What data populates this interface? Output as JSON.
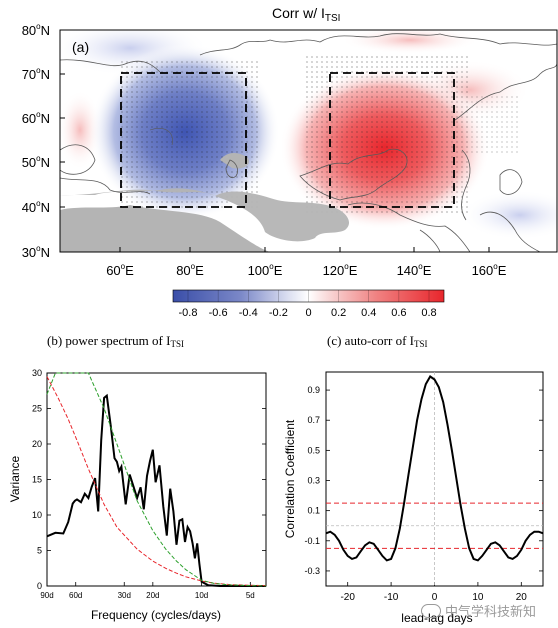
{
  "panel_a": {
    "title_main": "Corr w/ I",
    "title_sub": "TSI",
    "label": "(a)",
    "lat_ticks": [
      "80",
      "70",
      "60",
      "50",
      "40",
      "30"
    ],
    "lat_suffix": "N",
    "lon_ticks": [
      "60",
      "80",
      "100",
      "120",
      "140",
      "160"
    ],
    "lon_suffix": "E",
    "degree_symbol": "o",
    "colorbar_ticks": [
      "-0.8",
      "-0.6",
      "-0.4",
      "-0.2",
      "0",
      "0.2",
      "0.4",
      "0.6",
      "0.8"
    ],
    "colors": {
      "negative": "#3b4fae",
      "positive": "#e8262c",
      "land_missing": "#b4b4b4",
      "coast": "#5a5a5a"
    }
  },
  "panel_b": {
    "title": "(b) power spectrum of I",
    "title_sub": "TSI",
    "xlabel": "Frequency (cycles/days)",
    "ylabel": "Variance"
  },
  "panel_c": {
    "title": "(c) auto-corr of I",
    "title_sub": "TSI",
    "xlabel": "lead-lag days",
    "ylabel": "Correlation Coefficient"
  },
  "chart_data": [
    {
      "type": "line",
      "panel": "b",
      "x_tick_labels": [
        "90d",
        "60d",
        "30d",
        "20d",
        "10d",
        "5d"
      ],
      "x_ticks_cpd": [
        0.0111,
        0.0167,
        0.0333,
        0.05,
        0.1,
        0.2
      ],
      "y_ticks": [
        0,
        5,
        10,
        15,
        20,
        25,
        30
      ],
      "ylim": [
        0,
        30
      ],
      "xlim": [
        0.0111,
        0.25
      ],
      "series": [
        {
          "color": "#000000",
          "x": [
            0.0111,
            0.0125,
            0.014,
            0.015,
            0.016,
            0.0165,
            0.017,
            0.018,
            0.019,
            0.02,
            0.021,
            0.022,
            0.023,
            0.024,
            0.025,
            0.026,
            0.0275,
            0.029,
            0.03,
            0.031,
            0.032,
            0.034,
            0.036,
            0.038,
            0.04,
            0.042,
            0.044,
            0.046,
            0.048,
            0.05,
            0.052,
            0.055,
            0.058,
            0.061,
            0.064,
            0.067,
            0.07,
            0.073,
            0.076,
            0.079,
            0.082,
            0.085,
            0.088,
            0.091,
            0.094,
            0.097,
            0.1,
            0.11,
            0.13,
            0.15,
            0.17,
            0.2,
            0.23,
            0.25
          ],
          "y": [
            7,
            7.5,
            7.4,
            9,
            11.6,
            12,
            12.2,
            11.8,
            13,
            12.4,
            14,
            15.2,
            10.5,
            20.5,
            26.5,
            26.8,
            22.5,
            18,
            17.5,
            16.2,
            16.8,
            11.5,
            15.7,
            14,
            12.4,
            13.9,
            10.8,
            15.5,
            17.6,
            19.2,
            14.6,
            17,
            11.2,
            7.1,
            13.7,
            10.5,
            5.8,
            9.2,
            9.4,
            6.2,
            8.3,
            7.7,
            6,
            3.9,
            6,
            3.1,
            0.6,
            0.1,
            0,
            0,
            0,
            0,
            0,
            0
          ]
        },
        {
          "color": "#e8262c",
          "dash": true,
          "x": [
            0.0111,
            0.013,
            0.015,
            0.017,
            0.02,
            0.025,
            0.03,
            0.04,
            0.05,
            0.06,
            0.07,
            0.08,
            0.1,
            0.12,
            0.15,
            0.2,
            0.25
          ],
          "y": [
            29.5,
            26.5,
            23.5,
            20.5,
            16.5,
            11.5,
            8.3,
            5.2,
            3.5,
            2.5,
            1.8,
            1.3,
            0.7,
            0.4,
            0.2,
            0.1,
            0.05
          ]
        },
        {
          "color": "#2ca02c",
          "dash": true,
          "x": [
            0.0111,
            0.0125,
            0.0145,
            0.017,
            0.02,
            0.025,
            0.03,
            0.04,
            0.05,
            0.06,
            0.07,
            0.08,
            0.1,
            0.12,
            0.15,
            0.2,
            0.25
          ],
          "y": [
            27,
            30,
            30,
            30,
            30,
            25,
            20,
            12,
            7.8,
            5.2,
            3.5,
            2.3,
            0.8,
            0.35,
            0.15,
            0.05,
            0.02
          ]
        }
      ]
    },
    {
      "type": "line",
      "panel": "c",
      "x_ticks": [
        -20,
        -10,
        0,
        10,
        20
      ],
      "y_ticks": [
        -0.3,
        -0.1,
        0.1,
        0.3,
        0.5,
        0.7,
        0.9
      ],
      "xlim": [
        -25,
        25
      ],
      "ylim": [
        -0.4,
        1.02
      ],
      "zero_line": 0,
      "significance": [
        0.15,
        -0.15
      ],
      "series": [
        {
          "color": "#000000",
          "x": [
            -25,
            -24,
            -23,
            -22,
            -21,
            -20,
            -19,
            -18,
            -17,
            -16,
            -15,
            -14,
            -13,
            -12,
            -11,
            -10,
            -9,
            -8,
            -7,
            -6,
            -5,
            -4,
            -3,
            -2,
            -1,
            0,
            1,
            2,
            3,
            4,
            5,
            6,
            7,
            8,
            9,
            10,
            11,
            12,
            13,
            14,
            15,
            16,
            17,
            18,
            19,
            20,
            21,
            22,
            23,
            24,
            25
          ],
          "y": [
            -0.05,
            -0.04,
            -0.06,
            -0.1,
            -0.16,
            -0.2,
            -0.22,
            -0.21,
            -0.17,
            -0.13,
            -0.11,
            -0.12,
            -0.16,
            -0.2,
            -0.23,
            -0.22,
            -0.15,
            -0.02,
            0.15,
            0.34,
            0.52,
            0.7,
            0.84,
            0.94,
            0.99,
            0.97,
            0.92,
            0.82,
            0.67,
            0.5,
            0.32,
            0.14,
            -0.02,
            -0.15,
            -0.22,
            -0.23,
            -0.2,
            -0.16,
            -0.12,
            -0.11,
            -0.13,
            -0.17,
            -0.21,
            -0.22,
            -0.2,
            -0.16,
            -0.1,
            -0.06,
            -0.04,
            -0.04,
            -0.05
          ]
        }
      ]
    }
  ],
  "watermark": "中气学科技新知"
}
